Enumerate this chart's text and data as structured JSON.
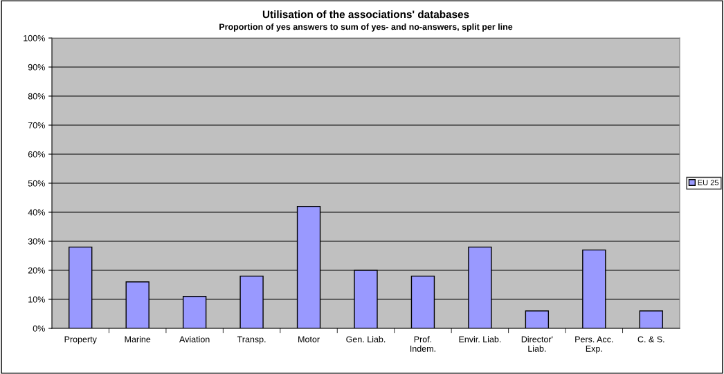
{
  "chart_data": {
    "type": "bar",
    "title": "Utilisation of the associations' databases",
    "subtitle": "Proportion of yes answers to sum of yes- and no-answers, split per line",
    "categories": [
      "Property",
      "Marine",
      "Aviation",
      "Transp.",
      "Motor",
      "Gen. Liab.",
      "Prof.\nIndem.",
      "Envir. Liab.",
      "Director'\nLiab.",
      "Pers. Acc.\nExp.",
      "C. & S."
    ],
    "series": [
      {
        "name": "EU 25",
        "color": "#9999ff",
        "values": [
          28,
          16,
          11,
          18,
          42,
          20,
          18,
          28,
          6,
          27,
          6
        ]
      }
    ],
    "ylim": [
      0,
      100
    ],
    "yticks": [
      {
        "value": 0,
        "label": "0%"
      },
      {
        "value": 10,
        "label": "10%"
      },
      {
        "value": 20,
        "label": "20%"
      },
      {
        "value": 30,
        "label": "30%"
      },
      {
        "value": 40,
        "label": "40%"
      },
      {
        "value": 50,
        "label": "50%"
      },
      {
        "value": 60,
        "label": "60%"
      },
      {
        "value": 70,
        "label": "70%"
      },
      {
        "value": 80,
        "label": "80%"
      },
      {
        "value": 90,
        "label": "90%"
      },
      {
        "value": 100,
        "label": "100%"
      }
    ],
    "grid": "y",
    "legend": "right"
  }
}
